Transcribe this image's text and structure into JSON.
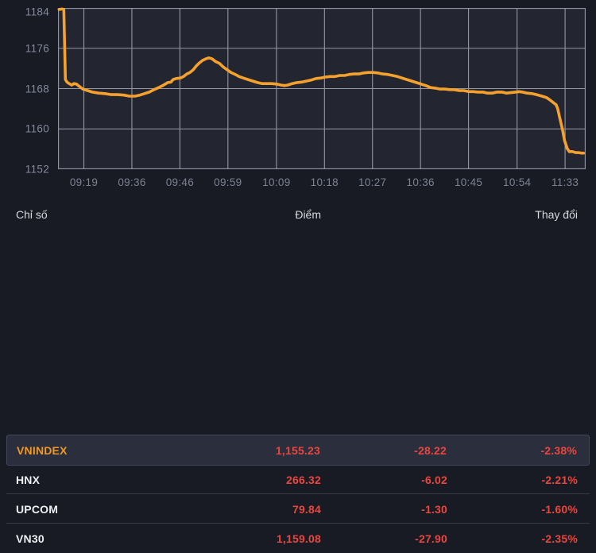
{
  "colors": {
    "background": "#191b24",
    "plot_background": "#232531",
    "grid": "#a9acbc",
    "line": "#f5a12d",
    "selected_index": "#f09727",
    "negative": "#e8463e",
    "text_primary": "#edeef2",
    "text_muted": "#85889a"
  },
  "chart_data": {
    "type": "line",
    "title": "",
    "xlabel": "",
    "ylabel": "",
    "grid": true,
    "legend": "none",
    "ylim": [
      1152,
      1184
    ],
    "y_ticks": [
      1184,
      1176,
      1168,
      1160,
      1152
    ],
    "x_tick_labels": [
      "09:19",
      "09:36",
      "09:46",
      "09:59",
      "10:09",
      "10:18",
      "10:27",
      "10:36",
      "10:45",
      "10:54",
      "11:33"
    ],
    "x_tick_positions": [
      0.049,
      0.14,
      0.231,
      0.322,
      0.414,
      0.505,
      0.596,
      0.687,
      0.778,
      0.87,
      0.961
    ],
    "line_color": "#f5a12d",
    "series": [
      {
        "name": "VNINDEX",
        "points": [
          [
            0.002,
            1183.7
          ],
          [
            0.008,
            1183.8
          ],
          [
            0.011,
            1183.7
          ],
          [
            0.014,
            1169.8
          ],
          [
            0.017,
            1169.3
          ],
          [
            0.021,
            1169.0
          ],
          [
            0.026,
            1168.7
          ],
          [
            0.03,
            1169.0
          ],
          [
            0.035,
            1168.9
          ],
          [
            0.041,
            1168.4
          ],
          [
            0.047,
            1167.9
          ],
          [
            0.056,
            1167.6
          ],
          [
            0.065,
            1167.3
          ],
          [
            0.077,
            1167.1
          ],
          [
            0.089,
            1167.0
          ],
          [
            0.101,
            1166.8
          ],
          [
            0.113,
            1166.8
          ],
          [
            0.125,
            1166.7
          ],
          [
            0.135,
            1166.5
          ],
          [
            0.146,
            1166.5
          ],
          [
            0.155,
            1166.7
          ],
          [
            0.164,
            1167.0
          ],
          [
            0.173,
            1167.3
          ],
          [
            0.182,
            1167.8
          ],
          [
            0.191,
            1168.2
          ],
          [
            0.2,
            1168.7
          ],
          [
            0.208,
            1169.2
          ],
          [
            0.214,
            1169.3
          ],
          [
            0.218,
            1169.8
          ],
          [
            0.224,
            1170.0
          ],
          [
            0.232,
            1170.1
          ],
          [
            0.238,
            1170.4
          ],
          [
            0.244,
            1170.9
          ],
          [
            0.25,
            1171.2
          ],
          [
            0.256,
            1171.7
          ],
          [
            0.262,
            1172.5
          ],
          [
            0.268,
            1173.1
          ],
          [
            0.274,
            1173.6
          ],
          [
            0.28,
            1173.9
          ],
          [
            0.286,
            1174.1
          ],
          [
            0.292,
            1173.9
          ],
          [
            0.298,
            1173.4
          ],
          [
            0.306,
            1173.0
          ],
          [
            0.313,
            1172.3
          ],
          [
            0.321,
            1171.7
          ],
          [
            0.328,
            1171.2
          ],
          [
            0.336,
            1170.8
          ],
          [
            0.343,
            1170.4
          ],
          [
            0.351,
            1170.1
          ],
          [
            0.36,
            1169.8
          ],
          [
            0.369,
            1169.5
          ],
          [
            0.378,
            1169.2
          ],
          [
            0.387,
            1169.0
          ],
          [
            0.396,
            1169.0
          ],
          [
            0.405,
            1169.0
          ],
          [
            0.414,
            1168.9
          ],
          [
            0.423,
            1168.7
          ],
          [
            0.429,
            1168.6
          ],
          [
            0.435,
            1168.7
          ],
          [
            0.444,
            1169.0
          ],
          [
            0.453,
            1169.2
          ],
          [
            0.462,
            1169.3
          ],
          [
            0.471,
            1169.5
          ],
          [
            0.48,
            1169.7
          ],
          [
            0.489,
            1170.0
          ],
          [
            0.498,
            1170.1
          ],
          [
            0.507,
            1170.3
          ],
          [
            0.516,
            1170.4
          ],
          [
            0.525,
            1170.4
          ],
          [
            0.534,
            1170.6
          ],
          [
            0.543,
            1170.6
          ],
          [
            0.552,
            1170.8
          ],
          [
            0.561,
            1170.9
          ],
          [
            0.57,
            1170.9
          ],
          [
            0.579,
            1171.1
          ],
          [
            0.588,
            1171.2
          ],
          [
            0.597,
            1171.2
          ],
          [
            0.606,
            1171.1
          ],
          [
            0.615,
            1170.9
          ],
          [
            0.625,
            1170.8
          ],
          [
            0.634,
            1170.6
          ],
          [
            0.643,
            1170.4
          ],
          [
            0.652,
            1170.1
          ],
          [
            0.661,
            1169.8
          ],
          [
            0.67,
            1169.5
          ],
          [
            0.679,
            1169.2
          ],
          [
            0.688,
            1168.9
          ],
          [
            0.697,
            1168.6
          ],
          [
            0.706,
            1168.2
          ],
          [
            0.715,
            1168.1
          ],
          [
            0.724,
            1167.9
          ],
          [
            0.733,
            1167.9
          ],
          [
            0.742,
            1167.8
          ],
          [
            0.751,
            1167.8
          ],
          [
            0.76,
            1167.6
          ],
          [
            0.769,
            1167.6
          ],
          [
            0.778,
            1167.4
          ],
          [
            0.787,
            1167.4
          ],
          [
            0.796,
            1167.3
          ],
          [
            0.805,
            1167.3
          ],
          [
            0.814,
            1167.1
          ],
          [
            0.823,
            1167.1
          ],
          [
            0.832,
            1167.3
          ],
          [
            0.841,
            1167.3
          ],
          [
            0.85,
            1167.1
          ],
          [
            0.867,
            1167.3
          ],
          [
            0.874,
            1167.4
          ],
          [
            0.88,
            1167.3
          ],
          [
            0.889,
            1167.1
          ],
          [
            0.898,
            1167.0
          ],
          [
            0.907,
            1166.8
          ],
          [
            0.917,
            1166.5
          ],
          [
            0.926,
            1166.2
          ],
          [
            0.933,
            1165.7
          ],
          [
            0.939,
            1165.2
          ],
          [
            0.944,
            1164.8
          ],
          [
            0.947,
            1164.0
          ],
          [
            0.951,
            1162.1
          ],
          [
            0.956,
            1159.9
          ],
          [
            0.96,
            1157.7
          ],
          [
            0.965,
            1156.1
          ],
          [
            0.969,
            1155.5
          ],
          [
            0.975,
            1155.5
          ],
          [
            0.981,
            1155.3
          ],
          [
            0.987,
            1155.3
          ],
          [
            0.992,
            1155.2
          ],
          [
            0.996,
            1155.2
          ]
        ]
      }
    ]
  },
  "table": {
    "headers": {
      "index": "Chỉ số",
      "points": "Điểm",
      "change": "Thay đổi"
    },
    "rows": [
      {
        "name": "VNINDEX",
        "points": "1,155.23",
        "change": "-28.22",
        "pct": "-2.38%",
        "selected": true
      },
      {
        "name": "HNX",
        "points": "266.32",
        "change": "-6.02",
        "pct": "-2.21%",
        "selected": false
      },
      {
        "name": "UPCOM",
        "points": "79.84",
        "change": "-1.30",
        "pct": "-1.60%",
        "selected": false
      },
      {
        "name": "VN30",
        "points": "1,159.08",
        "change": "-27.90",
        "pct": "-2.35%",
        "selected": false
      }
    ]
  }
}
